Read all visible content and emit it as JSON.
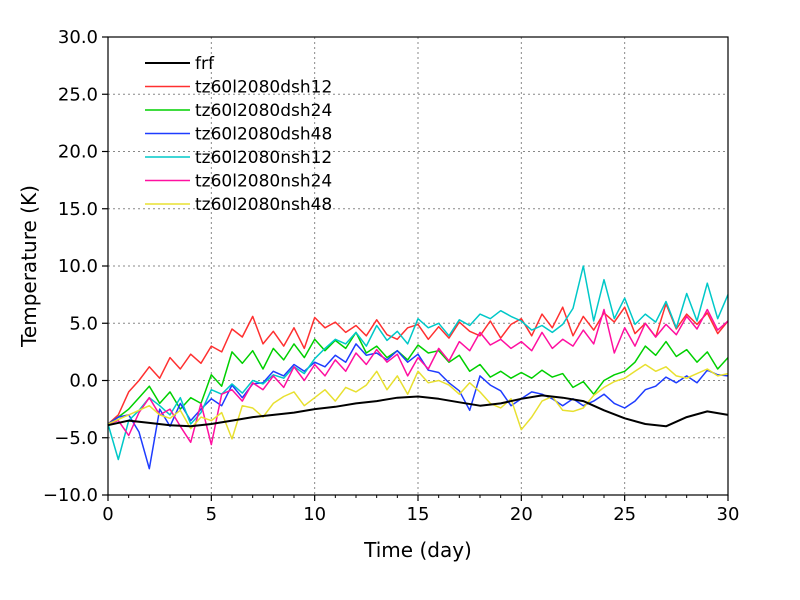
{
  "chart_data": {
    "type": "line",
    "title": "",
    "xlabel": "Time (day)",
    "ylabel": "Temperature (K)",
    "xlim": [
      0,
      30
    ],
    "ylim": [
      -10,
      30
    ],
    "xticks": [
      0,
      5,
      10,
      15,
      20,
      25,
      30
    ],
    "yticks": [
      -10,
      -5,
      0,
      5,
      10,
      15,
      20,
      25,
      30
    ],
    "xtick_labels": [
      "0",
      "5",
      "10",
      "15",
      "20",
      "25",
      "30"
    ],
    "ytick_labels": [
      "−10.0",
      "−5.0",
      "0.0",
      "5.0",
      "10.0",
      "15.0",
      "20.0",
      "25.0",
      "30.0"
    ],
    "grid": true,
    "legend_position": "top-left",
    "series": [
      {
        "name": "frf",
        "color": "#000000",
        "x": [
          0,
          1,
          2,
          3,
          4,
          5,
          6,
          7,
          8,
          9,
          10,
          11,
          12,
          13,
          14,
          15,
          16,
          17,
          18,
          19,
          20,
          21,
          22,
          23,
          24,
          25,
          26,
          27,
          28,
          29,
          30
        ],
        "y": [
          -3.9,
          -3.5,
          -3.7,
          -3.9,
          -4.0,
          -3.8,
          -3.5,
          -3.2,
          -3.0,
          -2.8,
          -2.5,
          -2.3,
          -2.0,
          -1.8,
          -1.5,
          -1.4,
          -1.6,
          -1.9,
          -2.2,
          -2.0,
          -1.6,
          -1.3,
          -1.5,
          -1.8,
          -2.6,
          -3.3,
          -3.8,
          -4.0,
          -3.2,
          -2.7,
          -3.0
        ]
      },
      {
        "name": "tz60l2080dsh12",
        "color": "#ff3030",
        "x": [
          0,
          0.5,
          1,
          1.5,
          2,
          2.5,
          3,
          3.5,
          4,
          4.5,
          5,
          5.5,
          6,
          6.5,
          7,
          7.5,
          8,
          8.5,
          9,
          9.5,
          10,
          10.5,
          11,
          11.5,
          12,
          12.5,
          13,
          13.5,
          14,
          14.5,
          15,
          15.5,
          16,
          16.5,
          17,
          17.5,
          18,
          18.5,
          19,
          19.5,
          20,
          20.5,
          21,
          21.5,
          22,
          22.5,
          23,
          23.5,
          24,
          24.5,
          25,
          25.5,
          26,
          26.5,
          27,
          27.5,
          28,
          28.5,
          29,
          29.5,
          30
        ],
        "y": [
          -3.8,
          -3.0,
          -1.0,
          0.0,
          1.2,
          0.2,
          2.0,
          1.0,
          2.3,
          1.5,
          3.0,
          2.5,
          4.5,
          3.8,
          5.6,
          3.2,
          4.3,
          3.0,
          4.6,
          2.8,
          5.5,
          4.6,
          5.1,
          4.2,
          4.8,
          3.9,
          5.3,
          4.0,
          3.6,
          4.6,
          4.9,
          3.6,
          4.7,
          3.7,
          5.1,
          4.3,
          3.9,
          5.2,
          3.7,
          4.9,
          5.4,
          3.9,
          5.8,
          4.6,
          6.4,
          3.9,
          5.6,
          4.4,
          5.9,
          5.1,
          6.4,
          4.1,
          5.0,
          3.8,
          6.7,
          4.5,
          5.8,
          4.9,
          5.9,
          4.1,
          5.2
        ]
      },
      {
        "name": "tz60l2080dsh24",
        "color": "#00d000",
        "x": [
          0,
          0.5,
          1,
          1.5,
          2,
          2.5,
          3,
          3.5,
          4,
          4.5,
          5,
          5.5,
          6,
          6.5,
          7,
          7.5,
          8,
          8.5,
          9,
          9.5,
          10,
          10.5,
          11,
          11.5,
          12,
          12.5,
          13,
          13.5,
          14,
          14.5,
          15,
          15.5,
          16,
          16.5,
          17,
          17.5,
          18,
          18.5,
          19,
          19.5,
          20,
          20.5,
          21,
          21.5,
          22,
          22.5,
          23,
          23.5,
          24,
          24.5,
          25,
          25.5,
          26,
          26.5,
          27,
          27.5,
          28,
          28.5,
          29,
          29.5,
          30
        ],
        "y": [
          -3.8,
          -3.2,
          -2.5,
          -1.5,
          -0.5,
          -2.0,
          -1.0,
          -2.5,
          -1.5,
          -2.0,
          0.5,
          -0.5,
          2.5,
          1.5,
          2.6,
          1.0,
          2.8,
          1.8,
          3.2,
          2.0,
          3.6,
          2.6,
          3.5,
          2.8,
          4.2,
          2.4,
          3.0,
          2.0,
          2.6,
          1.8,
          3.1,
          2.4,
          2.6,
          1.6,
          2.2,
          0.8,
          1.4,
          0.3,
          0.8,
          0.2,
          0.7,
          0.2,
          0.9,
          0.3,
          0.6,
          -0.6,
          -0.1,
          -1.2,
          0.0,
          0.5,
          0.8,
          1.6,
          3.0,
          2.2,
          3.4,
          2.1,
          2.7,
          1.6,
          2.5,
          1.0,
          2.0
        ]
      },
      {
        "name": "tz60l2080dsh48",
        "color": "#1e3cff",
        "x": [
          0,
          0.5,
          1,
          1.5,
          2,
          2.5,
          3,
          3.5,
          4,
          4.5,
          5,
          5.5,
          6,
          6.5,
          7,
          7.5,
          8,
          8.5,
          9,
          9.5,
          10,
          10.5,
          11,
          11.5,
          12,
          12.5,
          13,
          13.5,
          14,
          14.5,
          15,
          15.5,
          16,
          16.5,
          17,
          17.5,
          18,
          18.5,
          19,
          19.5,
          20,
          20.5,
          21,
          21.5,
          22,
          22.5,
          23,
          23.5,
          24,
          24.5,
          25,
          25.5,
          26,
          26.5,
          27,
          27.5,
          28,
          28.5,
          29,
          29.5,
          30
        ],
        "y": [
          -3.8,
          -3.2,
          -3.0,
          -4.5,
          -7.7,
          -2.5,
          -4.0,
          -2.0,
          -3.5,
          -2.5,
          -1.6,
          -2.2,
          -0.4,
          -1.5,
          -0.3,
          -0.2,
          0.8,
          0.4,
          1.4,
          0.8,
          1.6,
          1.2,
          2.2,
          1.6,
          3.2,
          2.2,
          2.4,
          1.8,
          2.6,
          1.6,
          2.3,
          0.9,
          0.7,
          -0.2,
          -0.9,
          -2.6,
          0.4,
          -0.4,
          -0.9,
          -2.2,
          -1.6,
          -1.0,
          -1.2,
          -1.6,
          -2.2,
          -1.6,
          -2.2,
          -1.8,
          -1.2,
          -2.0,
          -2.4,
          -1.8,
          -0.8,
          -0.5,
          0.3,
          -0.2,
          0.4,
          -0.2,
          0.9,
          0.5,
          0.4
        ]
      },
      {
        "name": "tz60l2080nsh12",
        "color": "#00c8c8",
        "x": [
          0,
          0.5,
          1,
          1.5,
          2,
          2.5,
          3,
          3.5,
          4,
          4.5,
          5,
          5.5,
          6,
          6.5,
          7,
          7.5,
          8,
          8.5,
          9,
          9.5,
          10,
          10.5,
          11,
          11.5,
          12,
          12.5,
          13,
          13.5,
          14,
          14.5,
          15,
          15.5,
          16,
          16.5,
          17,
          17.5,
          18,
          18.5,
          19,
          19.5,
          20,
          20.5,
          21,
          21.5,
          22,
          22.5,
          23,
          23.5,
          24,
          24.5,
          25,
          25.5,
          26,
          26.5,
          27,
          27.5,
          28,
          28.5,
          29,
          29.5,
          30
        ],
        "y": [
          -3.8,
          -6.9,
          -3.5,
          -2.6,
          -1.5,
          -2.2,
          -3.0,
          -1.5,
          -3.8,
          -2.8,
          -0.8,
          -1.2,
          -0.3,
          -1.1,
          0.0,
          -0.3,
          0.5,
          0.2,
          1.2,
          0.6,
          1.9,
          2.8,
          3.6,
          3.2,
          4.2,
          3.0,
          4.8,
          3.5,
          4.3,
          3.2,
          5.4,
          4.6,
          5.0,
          3.9,
          5.3,
          4.8,
          5.8,
          5.4,
          6.1,
          5.6,
          5.2,
          4.4,
          4.8,
          4.2,
          4.9,
          6.3,
          10.0,
          5.2,
          8.8,
          5.4,
          7.2,
          4.9,
          5.8,
          5.1,
          6.9,
          4.6,
          7.6,
          5.2,
          8.5,
          5.4,
          7.5
        ]
      },
      {
        "name": "tz60l2080nsh24",
        "color": "#ff10a0",
        "x": [
          0,
          0.5,
          1,
          1.5,
          2,
          2.5,
          3,
          3.5,
          4,
          4.5,
          5,
          5.5,
          6,
          6.5,
          7,
          7.5,
          8,
          8.5,
          9,
          9.5,
          10,
          10.5,
          11,
          11.5,
          12,
          12.5,
          13,
          13.5,
          14,
          14.5,
          15,
          15.5,
          16,
          16.5,
          17,
          17.5,
          18,
          18.5,
          19,
          19.5,
          20,
          20.5,
          21,
          21.5,
          22,
          22.5,
          23,
          23.5,
          24,
          24.5,
          25,
          25.5,
          26,
          26.5,
          27,
          27.5,
          28,
          28.5,
          29,
          29.5,
          30
        ],
        "y": [
          -3.8,
          -3.5,
          -4.8,
          -2.8,
          -1.5,
          -3.0,
          -2.5,
          -4.0,
          -5.4,
          -2.0,
          -5.6,
          -1.2,
          -0.8,
          -1.8,
          -0.2,
          -0.8,
          0.4,
          -0.6,
          1.2,
          0.0,
          1.4,
          0.4,
          1.8,
          0.8,
          2.4,
          1.4,
          2.7,
          1.6,
          2.3,
          0.4,
          2.0,
          1.0,
          2.8,
          1.7,
          3.4,
          2.6,
          4.2,
          3.1,
          3.6,
          2.8,
          3.4,
          2.6,
          4.2,
          2.8,
          3.6,
          3.0,
          4.4,
          3.2,
          6.2,
          2.4,
          4.6,
          3.0,
          5.0,
          3.8,
          4.9,
          4.0,
          5.6,
          4.5,
          6.2,
          4.4,
          5.2
        ]
      },
      {
        "name": "tz60l2080nsh48",
        "color": "#e8e030",
        "x": [
          0,
          0.5,
          1,
          1.5,
          2,
          2.5,
          3,
          3.5,
          4,
          4.5,
          5,
          5.5,
          6,
          6.5,
          7,
          7.5,
          8,
          8.5,
          9,
          9.5,
          10,
          10.5,
          11,
          11.5,
          12,
          12.5,
          13,
          13.5,
          14,
          14.5,
          15,
          15.5,
          16,
          16.5,
          17,
          17.5,
          18,
          18.5,
          19,
          19.5,
          20,
          20.5,
          21,
          21.5,
          22,
          22.5,
          23,
          23.5,
          24,
          24.5,
          25,
          25.5,
          26,
          26.5,
          27,
          27.5,
          28,
          28.5,
          29,
          29.5,
          30
        ],
        "y": [
          -3.8,
          -3.4,
          -3.0,
          -2.6,
          -2.2,
          -3.0,
          -3.3,
          -2.6,
          -4.2,
          -3.2,
          -3.5,
          -2.8,
          -5.1,
          -2.2,
          -2.4,
          -3.2,
          -2.0,
          -1.4,
          -1.0,
          -2.2,
          -1.5,
          -0.8,
          -1.8,
          -0.6,
          -1.0,
          -0.4,
          0.8,
          -0.8,
          0.4,
          -1.2,
          0.8,
          -0.2,
          0.0,
          -0.4,
          -1.2,
          -0.2,
          -1.0,
          -2.0,
          -2.4,
          -1.6,
          -4.3,
          -3.2,
          -1.8,
          -1.4,
          -2.6,
          -2.7,
          -2.4,
          -1.3,
          -0.6,
          -0.1,
          0.2,
          0.8,
          1.4,
          0.8,
          1.2,
          0.4,
          0.2,
          0.6,
          1.0,
          0.4,
          0.6
        ]
      }
    ]
  }
}
